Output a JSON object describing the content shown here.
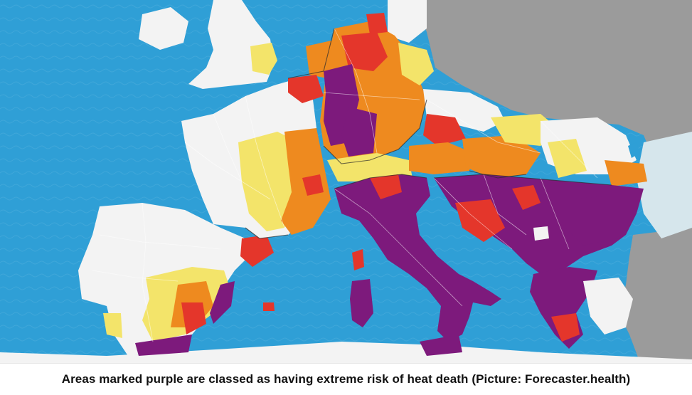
{
  "caption": {
    "text": "Areas marked purple are classed as having extreme risk of heat death (Picture: Forecaster.health)"
  },
  "map": {
    "subject": "heat death risk by region, Europe",
    "colors": {
      "sea": "#2f9fd6",
      "non_rated_land": "#9b9b9b",
      "no_data_land": "#f3f3f3",
      "low_risk": "#f3e46a",
      "medium_risk": "#ee8a1f",
      "high_risk": "#e4362b",
      "extreme_risk": "#7d1a7c"
    }
  }
}
